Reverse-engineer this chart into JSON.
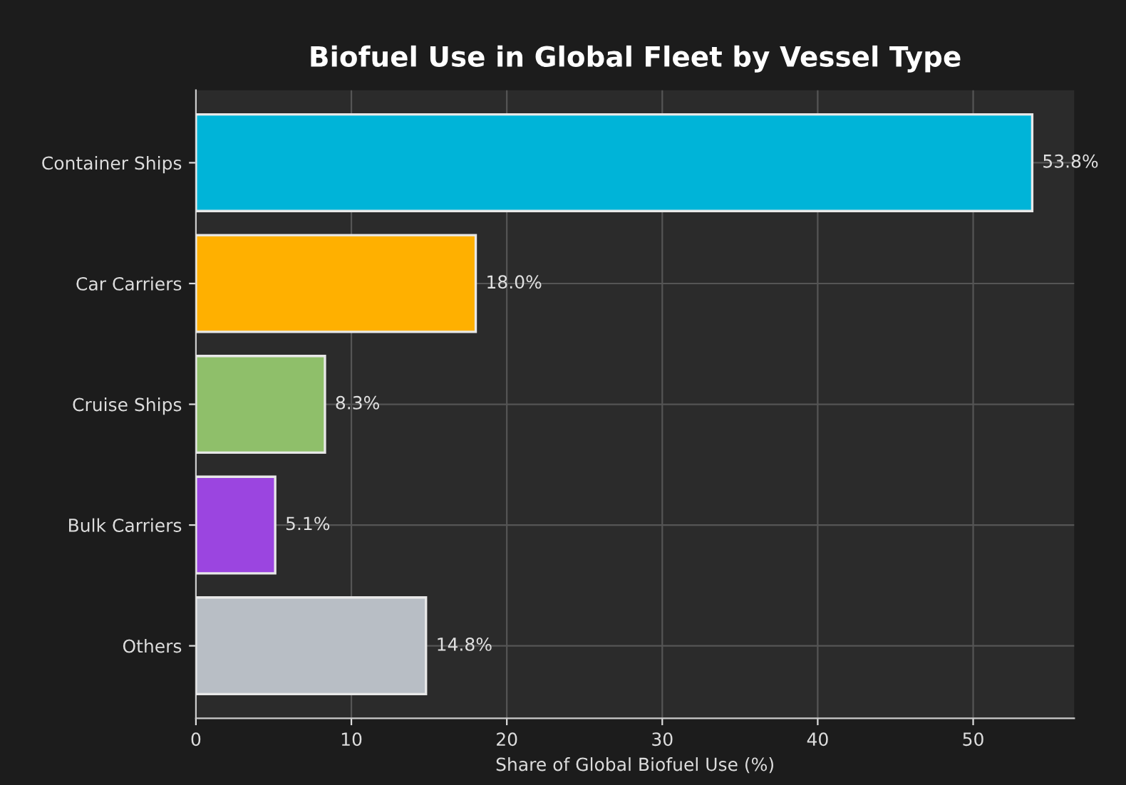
{
  "chart_data": {
    "type": "bar",
    "orientation": "horizontal",
    "title": "Biofuel Use in Global Fleet by Vessel Type",
    "xlabel": "Share of Global Biofuel Use (%)",
    "categories": [
      "Container Ships",
      "Car Carriers",
      "Cruise Ships",
      "Bulk Carriers",
      "Others"
    ],
    "values": [
      53.8,
      18.0,
      8.3,
      5.1,
      14.8
    ],
    "colors": [
      "#00b4d8",
      "#ffb000",
      "#8fbf6a",
      "#9b45e0",
      "#b8bec5"
    ],
    "value_labels": [
      "53.8%",
      "18.0%",
      "8.3%",
      "5.1%",
      "14.8%"
    ],
    "xlim": [
      0,
      56.5
    ],
    "xticks": [
      0,
      10,
      20,
      30,
      40,
      50
    ],
    "grid": true,
    "legend": false
  }
}
